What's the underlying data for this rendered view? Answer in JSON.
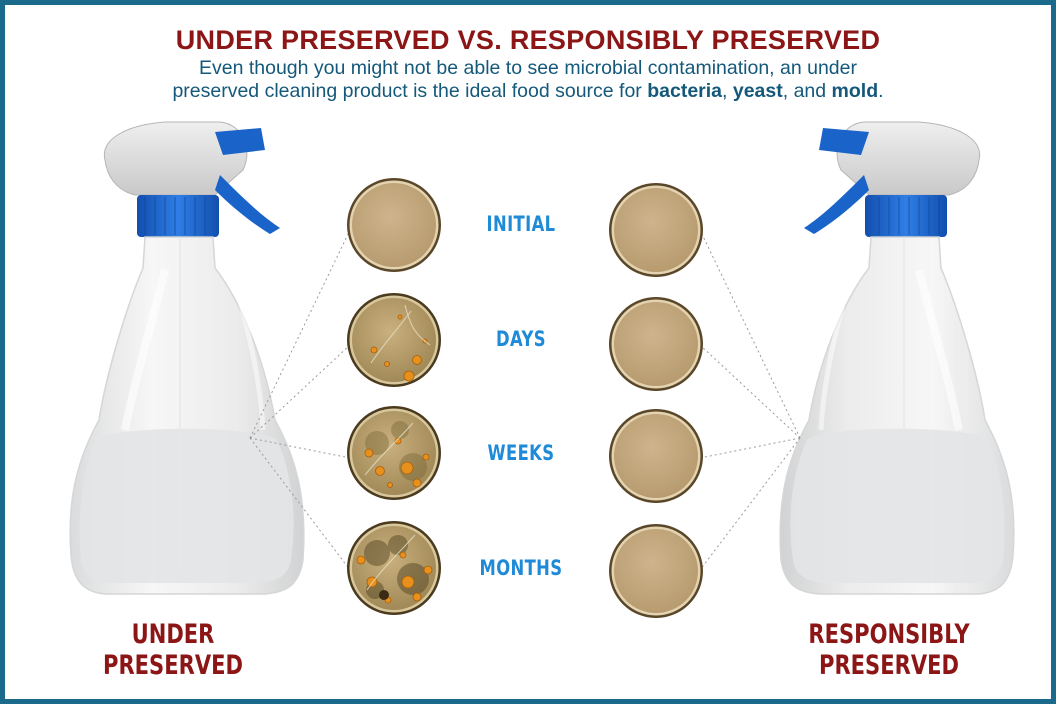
{
  "title": "UNDER PRESERVED VS. RESPONSIBLY PRESERVED",
  "subtitle": {
    "line1": "Even though you might not be able to see microbial contamination, an under",
    "line2_prefix": "preserved cleaning product is the ideal food source for ",
    "bacteria": "bacteria",
    "sep1": ", ",
    "yeast": "yeast",
    "sep2": ", and ",
    "mold": "mold",
    "end": "."
  },
  "stages": [
    "INITIAL",
    "DAYS",
    "WEEKS",
    "MONTHS"
  ],
  "left_label": {
    "line1": "UNDER",
    "line2": "PRESERVED"
  },
  "right_label": {
    "line1": "RESPONSIBLY",
    "line2": "PRESERVED"
  },
  "colors": {
    "border": "#1b6a8c",
    "title": "#8c1515",
    "subtitle": "#14587a",
    "stage_label": "#1e8ad8",
    "agar": "#c4aa82",
    "dish_rim": "#4e3c22",
    "spray_head": "#1a63c9",
    "colony": "#e8901c"
  },
  "icons": [
    "spray-bottle-icon",
    "petri-dish-icon"
  ]
}
